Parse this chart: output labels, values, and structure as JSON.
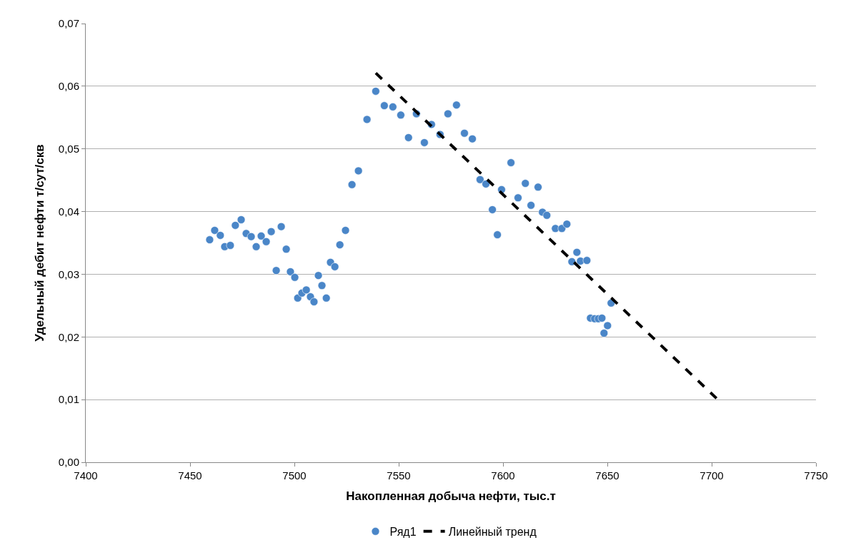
{
  "chart_data": {
    "type": "scatter",
    "xlabel": "Накопленная добыча нефти, тыс.т",
    "ylabel": "Удельный дебит нефти т/сут/скв",
    "xlim": [
      7400,
      7750
    ],
    "xticks": [
      7400,
      7450,
      7500,
      7550,
      7600,
      7650,
      7700,
      7750
    ],
    "ylim": [
      0,
      0.07
    ],
    "yticks": [
      {
        "value": 0,
        "label": "0,00"
      },
      {
        "value": 0.01,
        "label": "0,01"
      },
      {
        "value": 0.02,
        "label": "0,02"
      },
      {
        "value": 0.03,
        "label": "0,03"
      },
      {
        "value": 0.04,
        "label": "0,04"
      },
      {
        "value": 0.05,
        "label": "0,05"
      },
      {
        "value": 0.06,
        "label": "0,06"
      },
      {
        "value": 0.07,
        "label": "0,07"
      }
    ],
    "grid": "y",
    "legend": "bottom",
    "series": [
      {
        "name": "Ряд1",
        "marker": "circle",
        "color": "#4a86c8",
        "x": [
          7459.4,
          7461.8,
          7464.5,
          7466.6,
          7469.3,
          7471.7,
          7474.5,
          7476.9,
          7479.3,
          7481.7,
          7484.1,
          7486.5,
          7488.9,
          7491.3,
          7493.7,
          7496.1,
          7498.1,
          7500.2,
          7501.6,
          7503.6,
          7505.7,
          7507.7,
          7509.4,
          7511.5,
          7513.2,
          7515.3,
          7517.3,
          7519.4,
          7521.8,
          7524.5,
          7527.6,
          7530.7,
          7534.8,
          7539.0,
          7543.1,
          7547.2,
          7551.0,
          7554.7,
          7558.5,
          7562.3,
          7565.7,
          7569.8,
          7573.6,
          7577.7,
          7581.5,
          7585.3,
          7589.0,
          7591.8,
          7594.9,
          7597.3,
          7599.3,
          7603.8,
          7607.2,
          7610.7,
          7613.4,
          7616.8,
          7618.9,
          7621.0,
          7625.1,
          7628.2,
          7630.6,
          7633.0,
          7635.4,
          7637.1,
          7640.2,
          7641.9,
          7643.9,
          7645.7,
          7647.4,
          7648.4,
          7650.1,
          7651.8
        ],
        "values": [
          0.0355,
          0.037,
          0.0362,
          0.0344,
          0.0346,
          0.0378,
          0.0387,
          0.0365,
          0.036,
          0.0344,
          0.0361,
          0.0352,
          0.0368,
          0.0306,
          0.0376,
          0.034,
          0.0304,
          0.0295,
          0.0262,
          0.027,
          0.0275,
          0.0264,
          0.0256,
          0.0298,
          0.0282,
          0.0262,
          0.0319,
          0.0312,
          0.0347,
          0.037,
          0.0443,
          0.0465,
          0.0547,
          0.0592,
          0.0569,
          0.0567,
          0.0554,
          0.0518,
          0.0556,
          0.051,
          0.0539,
          0.0523,
          0.0556,
          0.057,
          0.0525,
          0.0516,
          0.0451,
          0.0444,
          0.0403,
          0.0363,
          0.0435,
          0.0478,
          0.0422,
          0.0445,
          0.041,
          0.0439,
          0.0399,
          0.0394,
          0.0373,
          0.0373,
          0.038,
          0.032,
          0.0335,
          0.0321,
          0.0322,
          0.023,
          0.0229,
          0.0229,
          0.023,
          0.0206,
          0.0218,
          0.0254
        ]
      },
      {
        "name": "Линейный тренд",
        "type": "line",
        "marker": "none",
        "color": "#000000",
        "line_style": "dashed",
        "x": [
          7539.0,
          7702.3
        ],
        "values": [
          0.0621,
          0.0102
        ]
      }
    ]
  }
}
